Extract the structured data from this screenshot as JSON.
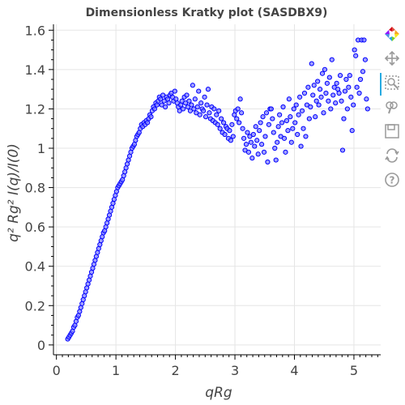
{
  "chart_data": {
    "type": "scatter",
    "title": "Dimensionless Kratky plot (SASDBX9)",
    "xlabel": "qRg",
    "ylabel": "q² Rg² I(q)/I(0)",
    "xlim": [
      -0.05,
      5.45
    ],
    "ylim": [
      -0.05,
      1.63
    ],
    "xticks": [
      0,
      1,
      2,
      3,
      4,
      5
    ],
    "yticks": [
      0,
      0.2,
      0.4,
      0.6,
      0.8,
      1,
      1.2,
      1.4,
      1.6
    ],
    "xtick_labels": [
      "0",
      "1",
      "2",
      "3",
      "4",
      "5"
    ],
    "ytick_labels": [
      "0",
      "0.2",
      "0.4",
      "0.6",
      "0.8",
      "1",
      "1.2",
      "1.4",
      "1.6"
    ],
    "grid": true,
    "marker_color": "#0000ff",
    "marker_fill": "#8080ff",
    "points": [
      [
        0.19,
        0.03
      ],
      [
        0.21,
        0.04
      ],
      [
        0.23,
        0.05
      ],
      [
        0.25,
        0.06
      ],
      [
        0.27,
        0.07
      ],
      [
        0.29,
        0.09
      ],
      [
        0.31,
        0.1
      ],
      [
        0.33,
        0.12
      ],
      [
        0.35,
        0.14
      ],
      [
        0.37,
        0.15
      ],
      [
        0.39,
        0.17
      ],
      [
        0.41,
        0.19
      ],
      [
        0.43,
        0.21
      ],
      [
        0.45,
        0.23
      ],
      [
        0.47,
        0.25
      ],
      [
        0.49,
        0.27
      ],
      [
        0.51,
        0.29
      ],
      [
        0.53,
        0.31
      ],
      [
        0.55,
        0.33
      ],
      [
        0.57,
        0.35
      ],
      [
        0.59,
        0.37
      ],
      [
        0.61,
        0.39
      ],
      [
        0.63,
        0.41
      ],
      [
        0.65,
        0.43
      ],
      [
        0.67,
        0.45
      ],
      [
        0.69,
        0.47
      ],
      [
        0.71,
        0.49
      ],
      [
        0.73,
        0.51
      ],
      [
        0.75,
        0.53
      ],
      [
        0.77,
        0.55
      ],
      [
        0.79,
        0.57
      ],
      [
        0.81,
        0.58
      ],
      [
        0.83,
        0.6
      ],
      [
        0.85,
        0.62
      ],
      [
        0.87,
        0.64
      ],
      [
        0.89,
        0.66
      ],
      [
        0.91,
        0.68
      ],
      [
        0.93,
        0.7
      ],
      [
        0.95,
        0.72
      ],
      [
        0.97,
        0.74
      ],
      [
        0.99,
        0.76
      ],
      [
        1.01,
        0.78
      ],
      [
        1.03,
        0.8
      ],
      [
        1.05,
        0.81
      ],
      [
        1.07,
        0.82
      ],
      [
        1.09,
        0.83
      ],
      [
        1.11,
        0.84
      ],
      [
        1.13,
        0.86
      ],
      [
        1.15,
        0.88
      ],
      [
        1.17,
        0.9
      ],
      [
        1.19,
        0.92
      ],
      [
        1.21,
        0.94
      ],
      [
        1.23,
        0.96
      ],
      [
        1.25,
        0.98
      ],
      [
        1.27,
        1.0
      ],
      [
        1.29,
        1.01
      ],
      [
        1.31,
        1.02
      ],
      [
        1.33,
        1.04
      ],
      [
        1.35,
        1.06
      ],
      [
        1.37,
        1.07
      ],
      [
        1.39,
        1.08
      ],
      [
        1.41,
        1.1
      ],
      [
        1.43,
        1.12
      ],
      [
        1.45,
        1.11
      ],
      [
        1.47,
        1.13
      ],
      [
        1.49,
        1.12
      ],
      [
        1.51,
        1.14
      ],
      [
        1.53,
        1.13
      ],
      [
        1.55,
        1.15
      ],
      [
        1.57,
        1.17
      ],
      [
        1.59,
        1.16
      ],
      [
        1.61,
        1.19
      ],
      [
        1.63,
        1.21
      ],
      [
        1.65,
        1.2
      ],
      [
        1.67,
        1.23
      ],
      [
        1.69,
        1.22
      ],
      [
        1.71,
        1.24
      ],
      [
        1.73,
        1.26
      ],
      [
        1.75,
        1.25
      ],
      [
        1.77,
        1.22
      ],
      [
        1.79,
        1.27
      ],
      [
        1.81,
        1.24
      ],
      [
        1.83,
        1.21
      ],
      [
        1.85,
        1.26
      ],
      [
        1.87,
        1.25
      ],
      [
        1.89,
        1.23
      ],
      [
        1.91,
        1.27
      ],
      [
        1.93,
        1.28
      ],
      [
        1.95,
        1.26
      ],
      [
        1.97,
        1.24
      ],
      [
        1.99,
        1.29
      ],
      [
        2.01,
        1.25
      ],
      [
        2.03,
        1.23
      ],
      [
        2.05,
        1.21
      ],
      [
        2.07,
        1.19
      ],
      [
        2.09,
        1.22
      ],
      [
        2.11,
        1.24
      ],
      [
        2.13,
        1.2
      ],
      [
        2.15,
        1.26
      ],
      [
        2.17,
        1.23
      ],
      [
        2.19,
        1.27
      ],
      [
        2.21,
        1.21
      ],
      [
        2.23,
        1.24
      ],
      [
        2.25,
        1.19
      ],
      [
        2.27,
        1.22
      ],
      [
        2.29,
        1.32
      ],
      [
        2.31,
        1.2
      ],
      [
        2.33,
        1.25
      ],
      [
        2.35,
        1.18
      ],
      [
        2.37,
        1.21
      ],
      [
        2.39,
        1.29
      ],
      [
        2.41,
        1.17
      ],
      [
        2.43,
        1.23
      ],
      [
        2.45,
        1.2
      ],
      [
        2.47,
        1.19
      ],
      [
        2.49,
        1.26
      ],
      [
        2.51,
        1.16
      ],
      [
        2.53,
        1.22
      ],
      [
        2.55,
        1.3
      ],
      [
        2.57,
        1.18
      ],
      [
        2.59,
        1.15
      ],
      [
        2.61,
        1.21
      ],
      [
        2.63,
        1.14
      ],
      [
        2.65,
        1.2
      ],
      [
        2.67,
        1.13
      ],
      [
        2.69,
        1.17
      ],
      [
        2.71,
        1.12
      ],
      [
        2.73,
        1.19
      ],
      [
        2.75,
        1.1
      ],
      [
        2.77,
        1.15
      ],
      [
        2.79,
        1.08
      ],
      [
        2.81,
        1.13
      ],
      [
        2.83,
        1.07
      ],
      [
        2.85,
        1.11
      ],
      [
        2.87,
        1.1
      ],
      [
        2.89,
        1.05
      ],
      [
        2.91,
        1.09
      ],
      [
        2.93,
        1.04
      ],
      [
        2.95,
        1.12
      ],
      [
        2.97,
        1.06
      ],
      [
        2.99,
        1.17
      ],
      [
        3.01,
        1.19
      ],
      [
        3.03,
        1.15
      ],
      [
        3.05,
        1.2
      ],
      [
        3.07,
        1.13
      ],
      [
        3.09,
        1.25
      ],
      [
        3.11,
        1.18
      ],
      [
        3.13,
        1.1
      ],
      [
        3.15,
        1.05
      ],
      [
        3.17,
        0.99
      ],
      [
        3.19,
        1.02
      ],
      [
        3.21,
        1.08
      ],
      [
        3.23,
        0.98
      ],
      [
        3.25,
        1.06
      ],
      [
        3.27,
        1.03
      ],
      [
        3.29,
        0.95
      ],
      [
        3.31,
        1.07
      ],
      [
        3.33,
        1.01
      ],
      [
        3.35,
        1.11
      ],
      [
        3.37,
        1.04
      ],
      [
        3.39,
        0.97
      ],
      [
        3.41,
        1.09
      ],
      [
        3.43,
        1.13
      ],
      [
        3.45,
        1.02
      ],
      [
        3.47,
        1.16
      ],
      [
        3.49,
        0.98
      ],
      [
        3.51,
        1.06
      ],
      [
        3.53,
        1.18
      ],
      [
        3.55,
        0.93
      ],
      [
        3.57,
        1.12
      ],
      [
        3.59,
        1.2
      ],
      [
        3.61,
        1.2
      ],
      [
        3.63,
        1.15
      ],
      [
        3.65,
        1.08
      ],
      [
        3.67,
        1.0
      ],
      [
        3.69,
        0.94
      ],
      [
        3.71,
        1.03
      ],
      [
        3.73,
        1.11
      ],
      [
        3.75,
        1.17
      ],
      [
        3.77,
        1.06
      ],
      [
        3.79,
        1.13
      ],
      [
        3.81,
        1.21
      ],
      [
        3.83,
        1.05
      ],
      [
        3.85,
        0.98
      ],
      [
        3.87,
        1.14
      ],
      [
        3.89,
        1.09
      ],
      [
        3.91,
        1.25
      ],
      [
        3.93,
        1.16
      ],
      [
        3.95,
        1.03
      ],
      [
        3.97,
        1.1
      ],
      [
        3.99,
        1.2
      ],
      [
        4.01,
        1.13
      ],
      [
        4.03,
        1.22
      ],
      [
        4.05,
        1.07
      ],
      [
        4.07,
        1.17
      ],
      [
        4.09,
        1.26
      ],
      [
        4.11,
        1.01
      ],
      [
        4.13,
        1.19
      ],
      [
        4.15,
        1.1
      ],
      [
        4.17,
        1.28
      ],
      [
        4.19,
        1.06
      ],
      [
        4.21,
        1.22
      ],
      [
        4.23,
        1.31
      ],
      [
        4.25,
        1.15
      ],
      [
        4.27,
        1.21
      ],
      [
        4.29,
        1.43
      ],
      [
        4.31,
        1.27
      ],
      [
        4.33,
        1.32
      ],
      [
        4.35,
        1.16
      ],
      [
        4.37,
        1.24
      ],
      [
        4.39,
        1.34
      ],
      [
        4.41,
        1.22
      ],
      [
        4.43,
        1.3
      ],
      [
        4.45,
        1.26
      ],
      [
        4.47,
        1.38
      ],
      [
        4.49,
        1.18
      ],
      [
        4.51,
        1.4
      ],
      [
        4.53,
        1.28
      ],
      [
        4.55,
        1.33
      ],
      [
        4.57,
        1.24
      ],
      [
        4.59,
        1.36
      ],
      [
        4.61,
        1.2
      ],
      [
        4.63,
        1.45
      ],
      [
        4.65,
        1.27
      ],
      [
        4.67,
        1.31
      ],
      [
        4.69,
        1.23
      ],
      [
        4.71,
        1.33
      ],
      [
        4.73,
        1.3
      ],
      [
        4.75,
        1.28
      ],
      [
        4.77,
        1.37
      ],
      [
        4.79,
        1.24
      ],
      [
        4.81,
        0.99
      ],
      [
        4.83,
        1.15
      ],
      [
        4.85,
        1.29
      ],
      [
        4.87,
        1.35
      ],
      [
        4.89,
        1.2
      ],
      [
        4.91,
        1.31
      ],
      [
        4.93,
        1.37
      ],
      [
        4.95,
        1.26
      ],
      [
        4.97,
        1.09
      ],
      [
        4.99,
        1.22
      ],
      [
        5.01,
        1.5
      ],
      [
        5.03,
        1.47
      ],
      [
        5.05,
        1.31
      ],
      [
        5.07,
        1.55
      ],
      [
        5.09,
        1.28
      ],
      [
        5.11,
        1.35
      ],
      [
        5.13,
        1.55
      ],
      [
        5.15,
        1.39
      ],
      [
        5.17,
        1.55
      ],
      [
        5.19,
        1.45
      ],
      [
        5.21,
        1.25
      ],
      [
        5.23,
        1.2
      ]
    ]
  },
  "toolbar": {
    "tools": [
      {
        "name": "bokeh-logo-icon",
        "interactable": false
      },
      {
        "name": "pan-icon",
        "interactable": true,
        "active": true
      },
      {
        "name": "box-zoom-icon",
        "interactable": true
      },
      {
        "name": "wheel-zoom-icon",
        "interactable": true
      },
      {
        "name": "save-icon",
        "interactable": true
      },
      {
        "name": "reset-icon",
        "interactable": true
      },
      {
        "name": "help-icon",
        "interactable": true
      }
    ],
    "active_color": "#26aae1",
    "icon_color": "#9a9a9a"
  }
}
